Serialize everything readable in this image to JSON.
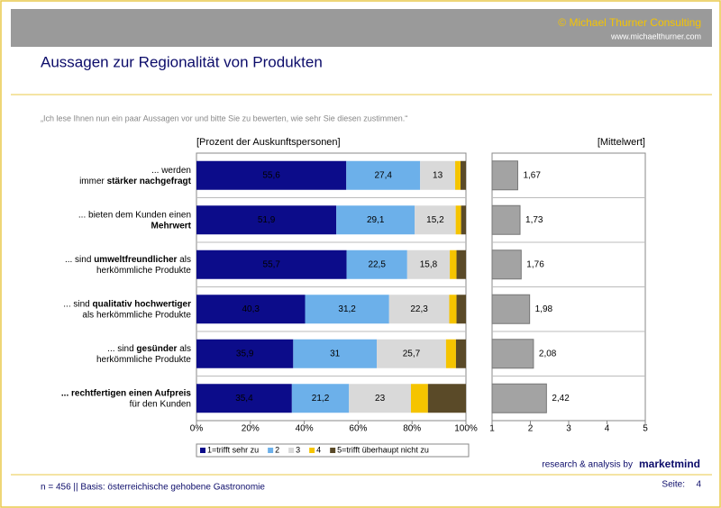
{
  "header": {
    "copyright": "© Michael Thurner Consulting",
    "url": "www.michaelthurner.com"
  },
  "title": "Aussagen zur Regionalität von Produkten",
  "question": "„Ich lese Ihnen nun ein paar Aussagen vor und bitte Sie zu bewerten, wie sehr Sie diesen zustimmen.“",
  "chart_data": [
    {
      "type": "stacked_bar",
      "orientation": "horizontal",
      "axis_label": "[Prozent der Auskunftspersonen]",
      "categories": [
        [
          [
            {
              "text": "... werden"
            }
          ],
          [
            {
              "text": "immer "
            },
            {
              "text": "stärker nachgefragt",
              "bold": true
            }
          ]
        ],
        [
          [
            {
              "text": "... bieten dem Kunden einen"
            }
          ],
          [
            {
              "text": "Mehrwert",
              "bold": true
            }
          ]
        ],
        [
          [
            {
              "text": "... sind "
            },
            {
              "text": "umweltfreundlicher",
              "bold": true
            },
            {
              "text": " als"
            }
          ],
          [
            {
              "text": "herkömmliche Produkte"
            }
          ]
        ],
        [
          [
            {
              "text": "... sind "
            },
            {
              "text": "qualitativ hochwertiger",
              "bold": true
            }
          ],
          [
            {
              "text": "als herkömmliche Produkte"
            }
          ]
        ],
        [
          [
            {
              "text": "... sind "
            },
            {
              "text": "gesünder",
              "bold": true
            },
            {
              "text": " als"
            }
          ],
          [
            {
              "text": "herkömmliche Produkte"
            }
          ]
        ],
        [
          [
            {
              "text": "... rechtfertigen einen Aufpreis",
              "bold": true
            }
          ],
          [
            {
              "text": "für den Kunden"
            }
          ]
        ]
      ],
      "series": [
        {
          "name": "1=trifft sehr zu",
          "color": "#0c0c8a",
          "label_color": "#ffffff",
          "values": [
            55.6,
            51.9,
            55.7,
            40.3,
            35.9,
            35.4
          ],
          "value_labels": [
            "55,6",
            "51,9",
            "55,7",
            "40,3",
            "35,9",
            "35,4"
          ]
        },
        {
          "name": "2",
          "color": "#6cb0ea",
          "label_color": "#ffffff",
          "values": [
            27.4,
            29.1,
            22.5,
            31.2,
            31,
            21.2
          ],
          "value_labels": [
            "27,4",
            "29,1",
            "22,5",
            "31,2",
            "31",
            "21,2"
          ]
        },
        {
          "name": "3",
          "color": "#d9d9d9",
          "label_color": "#000000",
          "values": [
            13,
            15.2,
            15.8,
            22.3,
            25.7,
            23
          ],
          "value_labels": [
            "13",
            "15,2",
            "15,8",
            "22,3",
            "25,7",
            "23"
          ]
        },
        {
          "name": "4",
          "color": "#f5c400",
          "values": [
            2,
            2,
            2.5,
            2.7,
            3.7,
            6.3
          ]
        },
        {
          "name": "5=trifft überhaupt nicht zu",
          "color": "#5a4a28",
          "values": [
            2,
            1.8,
            3.5,
            3.5,
            3.7,
            14.1
          ]
        }
      ],
      "xlim": [
        0,
        100
      ],
      "xticks": [
        {
          "value": 0,
          "label": "0%"
        },
        {
          "value": 20,
          "label": "20%"
        },
        {
          "value": 40,
          "label": "40%"
        },
        {
          "value": 60,
          "label": "60%"
        },
        {
          "value": 80,
          "label": "80%"
        },
        {
          "value": 100,
          "label": "100%"
        }
      ],
      "legend": "bottom"
    },
    {
      "type": "bar",
      "orientation": "horizontal",
      "axis_label": "[Mittelwert]",
      "values": [
        1.67,
        1.73,
        1.76,
        1.98,
        2.08,
        2.42
      ],
      "value_labels": [
        "1,67",
        "1,73",
        "1,76",
        "1,98",
        "2,08",
        "2,42"
      ],
      "color": "#a3a3a3",
      "xlim": [
        1,
        5
      ],
      "xticks": [
        1,
        2,
        3,
        4,
        5
      ]
    }
  ],
  "footer": {
    "brand_prefix": "research & analysis by",
    "brand": "marketmind",
    "basis": "n = 456 || Basis: österreichische gehobene Gastronomie",
    "page_label": "Seite:",
    "page": "4"
  }
}
